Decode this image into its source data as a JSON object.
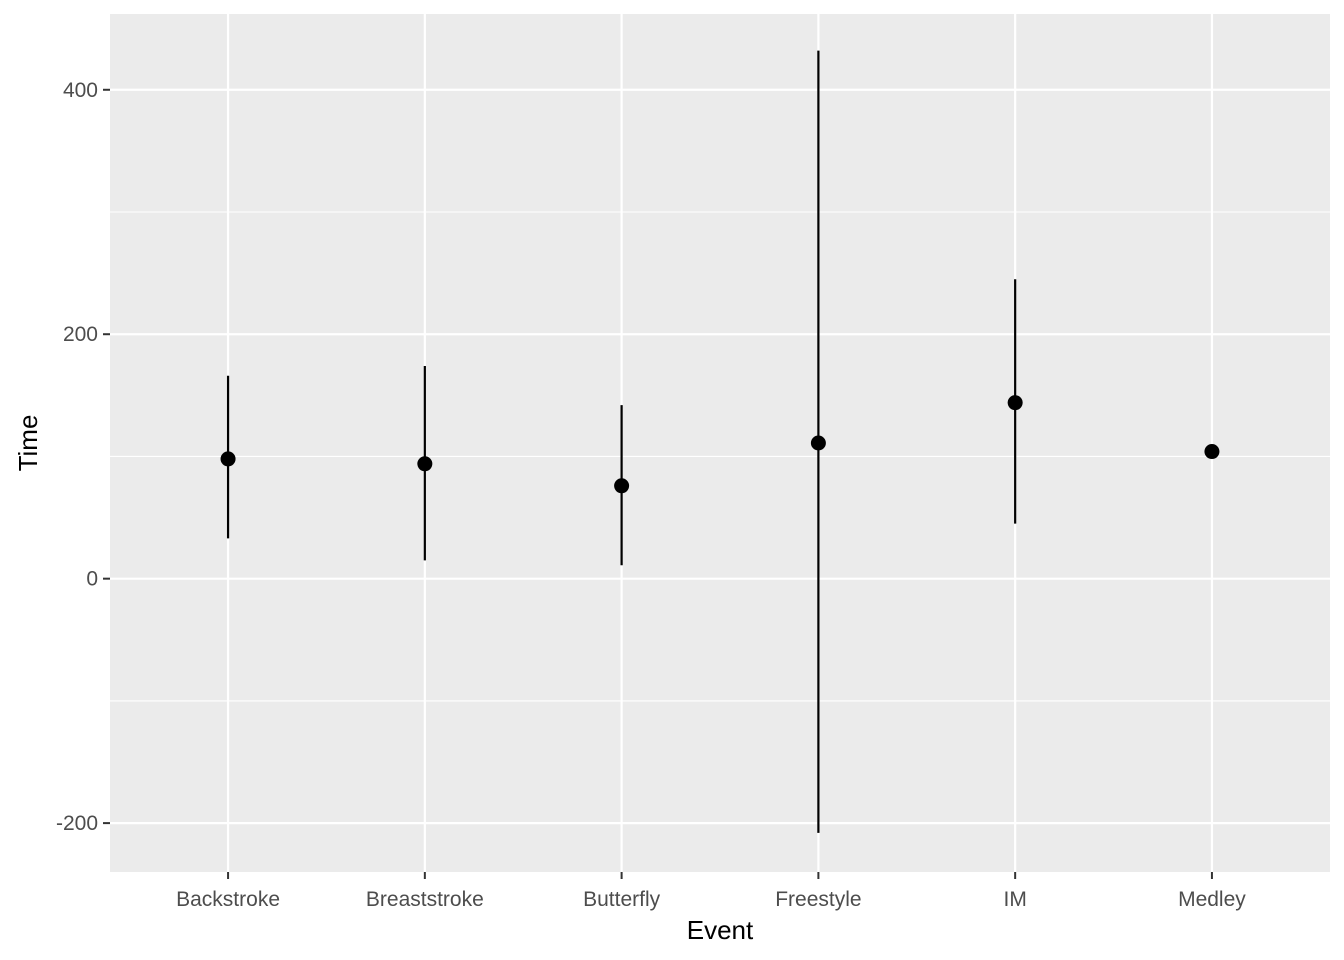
{
  "chart_data": {
    "type": "pointrange",
    "xlabel": "Event",
    "ylabel": "Time",
    "ylim": [
      -240,
      462
    ],
    "y_ticks": [
      -200,
      0,
      200,
      400
    ],
    "y_minor_ticks": [
      -100,
      100,
      300
    ],
    "grid": true,
    "legend": "none",
    "categories": [
      "Backstroke",
      "Breaststroke",
      "Butterfly",
      "Freestyle",
      "IM",
      "Medley"
    ],
    "values": [
      98,
      94,
      76,
      111,
      144,
      104
    ],
    "lower": [
      33,
      15,
      11,
      -208,
      45,
      104
    ],
    "upper": [
      166,
      174,
      142,
      432,
      245,
      104
    ]
  },
  "colors": {
    "panel": "#ebebeb",
    "grid": "#ffffff",
    "marks": "#000000",
    "tick_text": "#4d4d4d",
    "tick_line": "#333333"
  }
}
